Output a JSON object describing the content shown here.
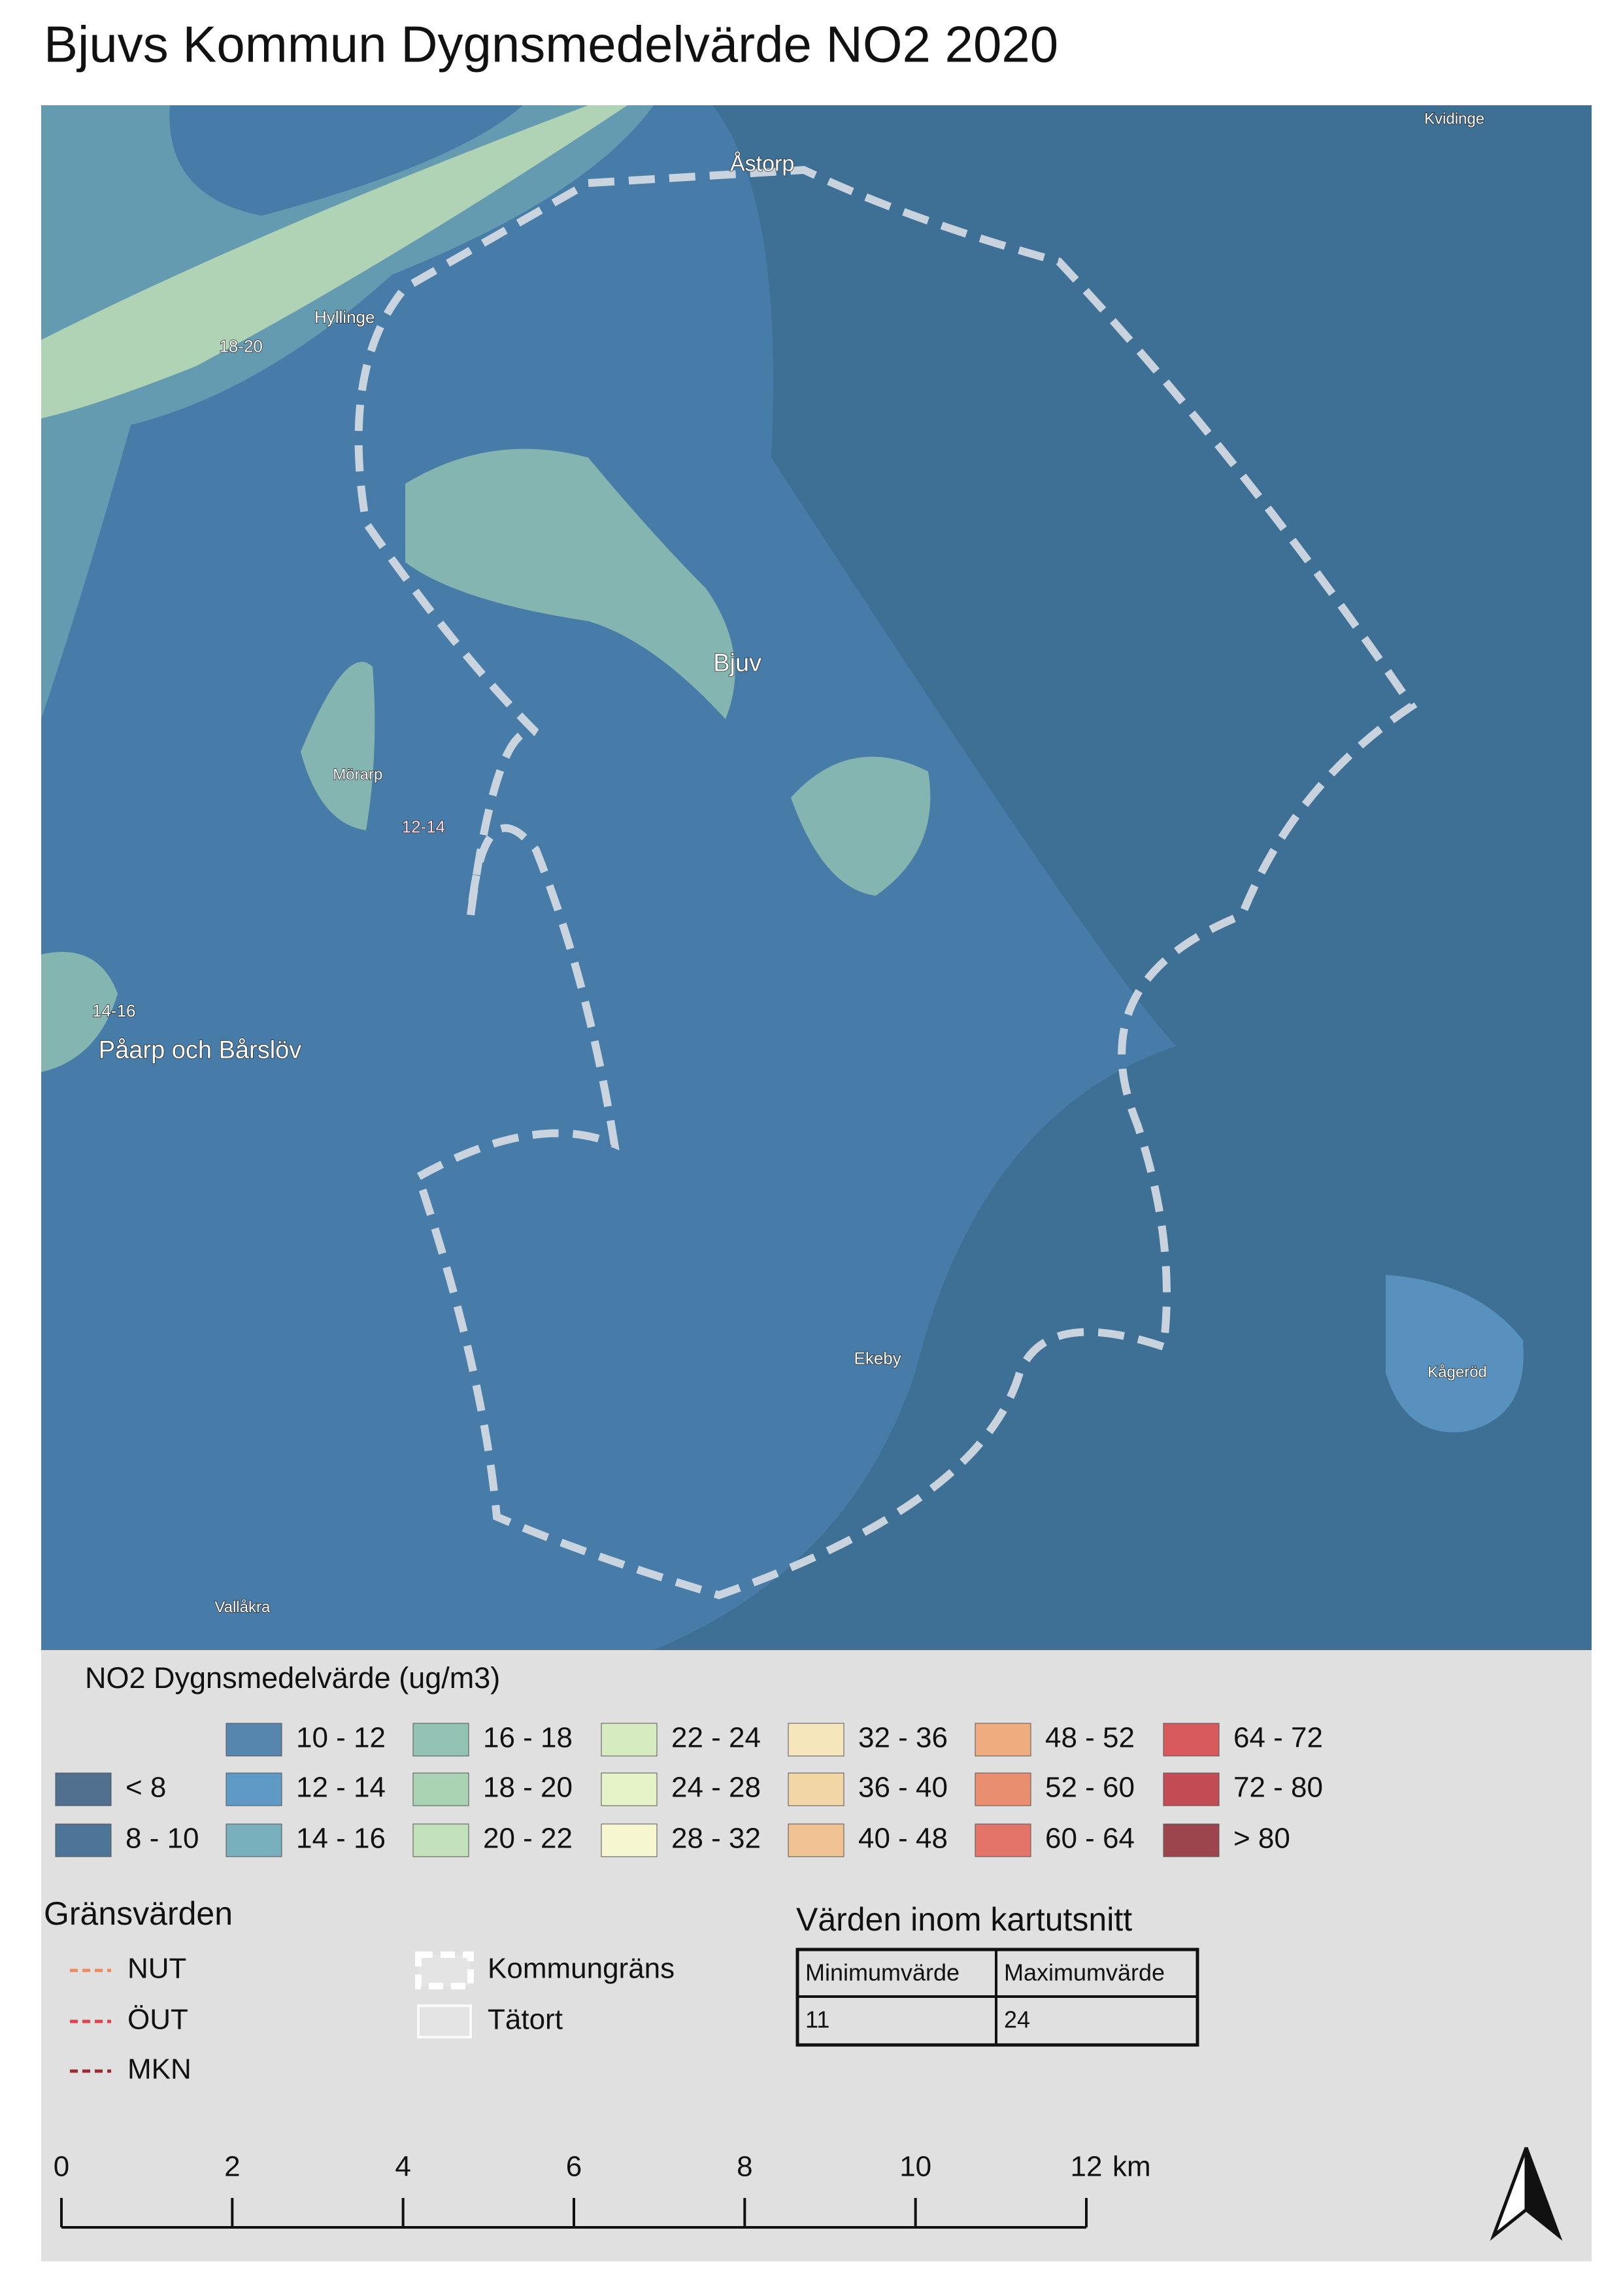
{
  "title": "Bjuvs Kommun Dygnsmedelvärde NO2 2020",
  "map_labels": [
    "Åstorp",
    "Kvidinge",
    "Hyllinge",
    "18-20",
    "Bjuv",
    "Mörarp",
    "12-14",
    "14-16",
    "Påarp och Bårslöv",
    "Ekeby",
    "Kågeröd",
    "Vallåkra"
  ],
  "legend": {
    "title": "NO2 Dygnsmedelvärde (ug/m3)",
    "classes": [
      {
        "label": "< 8",
        "color": "#51708f"
      },
      {
        "label": "8 - 10",
        "color": "#4d7598"
      },
      {
        "label": "10 - 12",
        "color": "#5686ad"
      },
      {
        "label": "12 - 14",
        "color": "#5f9ac7"
      },
      {
        "label": "14 - 16",
        "color": "#78b0bd"
      },
      {
        "label": "16 - 18",
        "color": "#92c3b5"
      },
      {
        "label": "18 - 20",
        "color": "#a9d3b3"
      },
      {
        "label": "20 - 22",
        "color": "#c3e2bb"
      },
      {
        "label": "22 - 24",
        "color": "#d6ebc0"
      },
      {
        "label": "24 - 28",
        "color": "#e6f2c8"
      },
      {
        "label": "28 - 32",
        "color": "#f6f6d0"
      },
      {
        "label": "32 - 36",
        "color": "#f6e6bb"
      },
      {
        "label": "36 - 40",
        "color": "#f3d6a6"
      },
      {
        "label": "40 - 48",
        "color": "#f1c393"
      },
      {
        "label": "48 - 52",
        "color": "#eeac7f"
      },
      {
        "label": "52 - 60",
        "color": "#e98f70"
      },
      {
        "label": "60 - 64",
        "color": "#e4736a"
      },
      {
        "label": "64 - 72",
        "color": "#d95a5d"
      },
      {
        "label": "72 - 80",
        "color": "#c24c53"
      },
      {
        "label": "> 80",
        "color": "#9c454c"
      }
    ]
  },
  "limits": {
    "title": "Gränsvärden",
    "items": [
      {
        "label": "NUT",
        "color": "#f08a5d"
      },
      {
        "label": "ÖUT",
        "color": "#e0414a"
      },
      {
        "label": "MKN",
        "color": "#9b2a33"
      }
    ]
  },
  "boundaries": [
    "Kommungräns",
    "Tätort"
  ],
  "table": {
    "title": "Värden inom kartutsnitt",
    "headers": [
      "Minimumvärde",
      "Maximumvärde"
    ],
    "rows": [
      [
        11,
        24
      ]
    ]
  },
  "scalebar": {
    "ticks": [
      0,
      2,
      4,
      6,
      8,
      10,
      12
    ],
    "unit": "km"
  }
}
